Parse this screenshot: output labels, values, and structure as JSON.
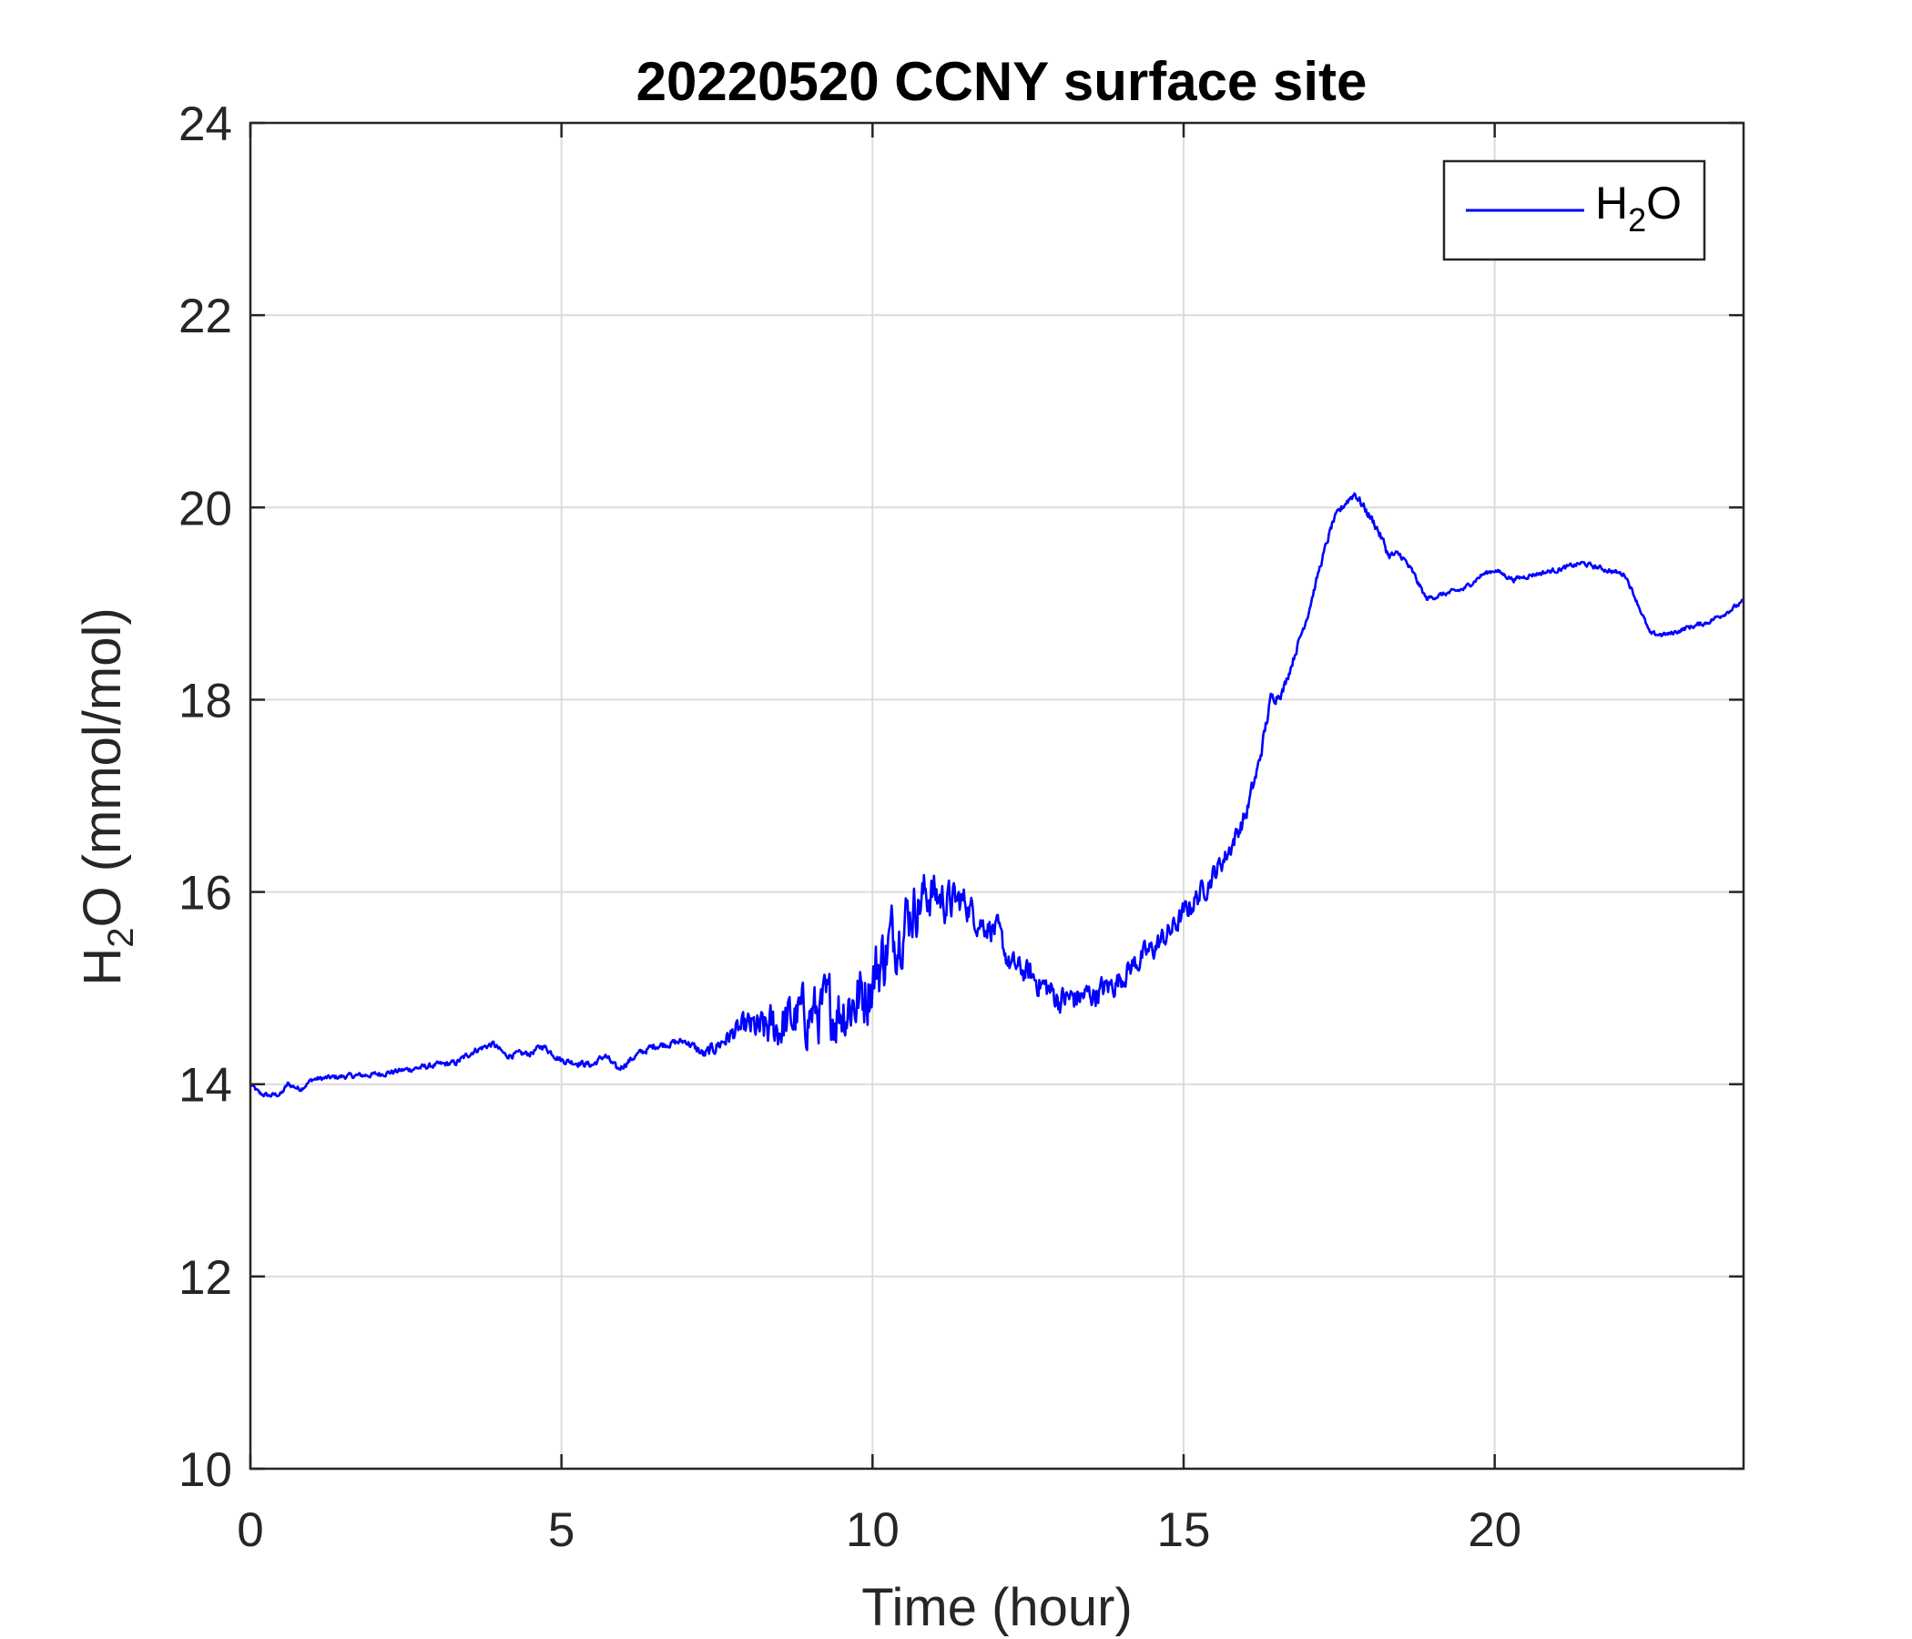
{
  "chart_data": {
    "type": "line",
    "title": "20220520 CCNY surface site",
    "xlabel": "Time (hour)",
    "ylabel": {
      "main": "H",
      "sub": "2",
      "rest": "O (mmol/mol)"
    },
    "xlim": [
      0,
      24
    ],
    "ylim": [
      10,
      24
    ],
    "xticks": [
      0,
      5,
      10,
      15,
      20
    ],
    "yticks": [
      10,
      12,
      14,
      16,
      18,
      20,
      22,
      24
    ],
    "grid": true,
    "legend_position": "top-right",
    "series": [
      {
        "name": {
          "main": "H",
          "sub": "2",
          "rest": "O"
        },
        "color": "#0000ff",
        "noise_points": [
          [
            0,
            0.02
          ],
          [
            7,
            0.03
          ],
          [
            7.8,
            0.08
          ],
          [
            8.4,
            0.2
          ],
          [
            9.6,
            0.3
          ],
          [
            10.2,
            0.3
          ],
          [
            11,
            0.2
          ],
          [
            11.6,
            0.12
          ],
          [
            12.2,
            0.1
          ],
          [
            13,
            0.12
          ],
          [
            14,
            0.1
          ],
          [
            15,
            0.1
          ],
          [
            16,
            0.08
          ],
          [
            16.6,
            0.04
          ],
          [
            17,
            0.03
          ],
          [
            18.2,
            0.04
          ],
          [
            19,
            0.02
          ],
          [
            24,
            0.02
          ]
        ],
        "points": [
          [
            0.0,
            14.0
          ],
          [
            0.15,
            13.9
          ],
          [
            0.3,
            13.88
          ],
          [
            0.5,
            13.9
          ],
          [
            0.6,
            14.0
          ],
          [
            0.8,
            13.95
          ],
          [
            1.0,
            14.05
          ],
          [
            1.5,
            14.08
          ],
          [
            2.0,
            14.1
          ],
          [
            2.5,
            14.15
          ],
          [
            3.0,
            14.2
          ],
          [
            3.3,
            14.22
          ],
          [
            3.6,
            14.35
          ],
          [
            3.9,
            14.42
          ],
          [
            4.1,
            14.3
          ],
          [
            4.5,
            14.32
          ],
          [
            4.7,
            14.4
          ],
          [
            5.0,
            14.25
          ],
          [
            5.5,
            14.2
          ],
          [
            5.7,
            14.3
          ],
          [
            5.9,
            14.15
          ],
          [
            6.2,
            14.3
          ],
          [
            6.5,
            14.4
          ],
          [
            7.0,
            14.45
          ],
          [
            7.3,
            14.3
          ],
          [
            7.6,
            14.45
          ],
          [
            7.8,
            14.55
          ],
          [
            8.0,
            14.6
          ],
          [
            8.2,
            14.55
          ],
          [
            8.5,
            14.6
          ],
          [
            8.8,
            14.7
          ],
          [
            9.2,
            14.75
          ],
          [
            9.5,
            14.8
          ],
          [
            9.8,
            14.9
          ],
          [
            10.0,
            15.1
          ],
          [
            10.3,
            15.5
          ],
          [
            10.6,
            15.8
          ],
          [
            10.9,
            16.0
          ],
          [
            11.2,
            15.9
          ],
          [
            11.5,
            15.9
          ],
          [
            11.7,
            15.7
          ],
          [
            12.0,
            15.6
          ],
          [
            12.2,
            15.25
          ],
          [
            12.5,
            15.15
          ],
          [
            12.8,
            15.0
          ],
          [
            13.0,
            14.88
          ],
          [
            13.3,
            14.9
          ],
          [
            13.6,
            14.95
          ],
          [
            13.9,
            15.05
          ],
          [
            14.2,
            15.25
          ],
          [
            14.5,
            15.4
          ],
          [
            14.8,
            15.6
          ],
          [
            15.1,
            15.85
          ],
          [
            15.4,
            16.1
          ],
          [
            15.7,
            16.4
          ],
          [
            16.0,
            16.8
          ],
          [
            16.2,
            17.3
          ],
          [
            16.4,
            18.0
          ],
          [
            16.6,
            18.1
          ],
          [
            16.8,
            18.5
          ],
          [
            17.0,
            18.9
          ],
          [
            17.2,
            19.4
          ],
          [
            17.4,
            19.85
          ],
          [
            17.6,
            20.05
          ],
          [
            17.75,
            20.15
          ],
          [
            17.9,
            20.0
          ],
          [
            18.1,
            19.8
          ],
          [
            18.3,
            19.5
          ],
          [
            18.5,
            19.5
          ],
          [
            18.7,
            19.3
          ],
          [
            18.9,
            19.05
          ],
          [
            19.2,
            19.1
          ],
          [
            19.5,
            19.15
          ],
          [
            19.8,
            19.3
          ],
          [
            20.0,
            19.35
          ],
          [
            20.3,
            19.25
          ],
          [
            20.6,
            19.3
          ],
          [
            21.0,
            19.35
          ],
          [
            21.4,
            19.42
          ],
          [
            21.8,
            19.35
          ],
          [
            22.1,
            19.3
          ],
          [
            22.3,
            19.0
          ],
          [
            22.5,
            18.68
          ],
          [
            22.8,
            18.68
          ],
          [
            23.1,
            18.75
          ],
          [
            23.4,
            18.8
          ],
          [
            23.7,
            18.9
          ],
          [
            24.0,
            19.02
          ]
        ]
      }
    ]
  }
}
